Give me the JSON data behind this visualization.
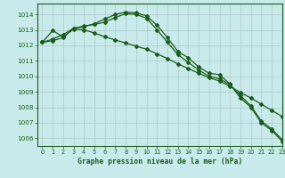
{
  "title": "Graphe pression niveau de la mer (hPa)",
  "background_color": "#c8eaea",
  "grid_color": "#b0c8c8",
  "line_color": "#1a5c1a",
  "text_color": "#1a5c1a",
  "xlim": [
    -0.5,
    23
  ],
  "ylim": [
    1005.5,
    1014.7
  ],
  "yticks": [
    1006,
    1007,
    1008,
    1009,
    1010,
    1011,
    1012,
    1013,
    1014
  ],
  "xticks": [
    0,
    1,
    2,
    3,
    4,
    5,
    6,
    7,
    8,
    9,
    10,
    11,
    12,
    13,
    14,
    15,
    16,
    17,
    18,
    19,
    20,
    21,
    22,
    23
  ],
  "series": [
    [
      1012.2,
      1012.3,
      1012.5,
      1013.1,
      1013.2,
      1013.4,
      1013.7,
      1014.0,
      1014.15,
      1014.1,
      1013.9,
      1013.3,
      1012.5,
      1011.6,
      1011.2,
      1010.6,
      1010.2,
      1010.1,
      1009.5,
      1008.6,
      1008.0,
      1007.0,
      1006.5,
      1005.8
    ],
    [
      1012.2,
      1012.4,
      1012.7,
      1013.1,
      1013.25,
      1013.35,
      1013.5,
      1013.8,
      1014.05,
      1014.0,
      1013.75,
      1013.0,
      1012.2,
      1011.4,
      1010.9,
      1010.4,
      1010.0,
      1009.85,
      1009.45,
      1008.75,
      1008.1,
      1007.1,
      1006.6,
      1005.9
    ],
    [
      1012.2,
      1012.95,
      1012.55,
      1013.05,
      1013.0,
      1012.8,
      1012.55,
      1012.35,
      1012.15,
      1011.95,
      1011.75,
      1011.45,
      1011.15,
      1010.8,
      1010.5,
      1010.2,
      1009.9,
      1009.7,
      1009.35,
      1008.95,
      1008.6,
      1008.2,
      1007.8,
      1007.4
    ]
  ]
}
